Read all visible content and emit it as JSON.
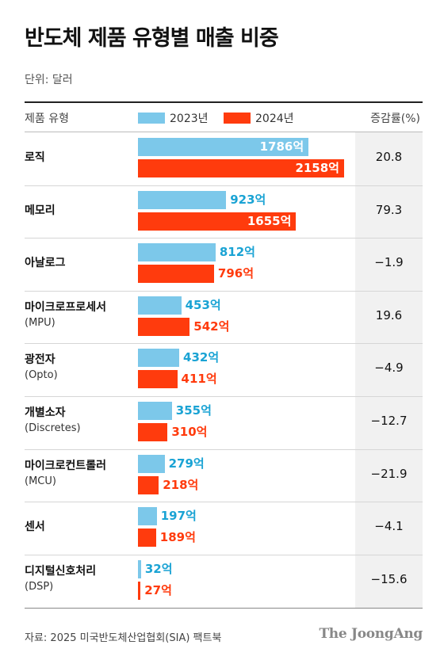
{
  "title": "반도체 제품 유형별 매출 비중",
  "unit_label": "단위: 달러",
  "header": {
    "type_label": "제품 유형",
    "rate_label": "증감률(%)"
  },
  "colors": {
    "y2023": "#7cc8ea",
    "y2024": "#ff3b0d",
    "label2023_outside": "#1aa3d4"
  },
  "chart_data": {
    "type": "bar",
    "orientation": "horizontal",
    "value_suffix": "억",
    "xlim": [
      0,
      2158
    ],
    "legend_position": "top",
    "series": [
      {
        "name": "2023년",
        "values": [
          1786,
          923,
          812,
          453,
          432,
          355,
          279,
          197,
          32
        ]
      },
      {
        "name": "2024년",
        "values": [
          2158,
          1655,
          796,
          542,
          411,
          310,
          218,
          189,
          27
        ]
      }
    ],
    "rows": [
      {
        "name": "로직",
        "sub": "",
        "v2023": 1786,
        "v2024": 2158,
        "label2023": "1786억",
        "label2024": "2158억",
        "rate": "20.8"
      },
      {
        "name": "메모리",
        "sub": "",
        "v2023": 923,
        "v2024": 1655,
        "label2023": "923억",
        "label2024": "1655억",
        "rate": "79.3"
      },
      {
        "name": "아날로그",
        "sub": "",
        "v2023": 812,
        "v2024": 796,
        "label2023": "812억",
        "label2024": "796억",
        "rate": "−1.9"
      },
      {
        "name": "마이크로프로세서",
        "sub": "(MPU)",
        "v2023": 453,
        "v2024": 542,
        "label2023": "453억",
        "label2024": "542억",
        "rate": "19.6"
      },
      {
        "name": "광전자",
        "sub": "(Opto)",
        "v2023": 432,
        "v2024": 411,
        "label2023": "432억",
        "label2024": "411억",
        "rate": "−4.9"
      },
      {
        "name": "개별소자",
        "sub": "(Discretes)",
        "v2023": 355,
        "v2024": 310,
        "label2023": "355억",
        "label2024": "310억",
        "rate": "−12.7"
      },
      {
        "name": "마이크로컨트롤러",
        "sub": "(MCU)",
        "v2023": 279,
        "v2024": 218,
        "label2023": "279억",
        "label2024": "218억",
        "rate": "−21.9"
      },
      {
        "name": "센서",
        "sub": "",
        "v2023": 197,
        "v2024": 189,
        "label2023": "197억",
        "label2024": "189억",
        "rate": "−4.1"
      },
      {
        "name": "디지털신호처리",
        "sub": "(DSP)",
        "v2023": 32,
        "v2024": 27,
        "label2023": "32억",
        "label2024": "27억",
        "rate": "−15.6"
      }
    ]
  },
  "footer": {
    "source": "자료: 2025 미국반도체산업협회(SIA) 팩트북",
    "brand": "The JoongAng"
  }
}
